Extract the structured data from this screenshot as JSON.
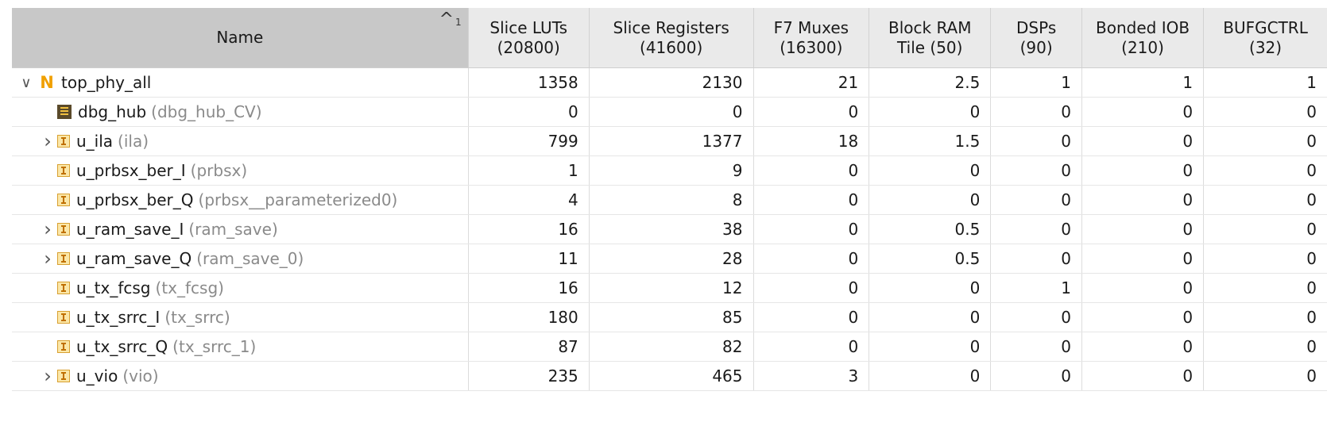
{
  "columns": {
    "name": "Name",
    "sort_number": "1",
    "slice_luts": "Slice LUTs\n(20800)",
    "slice_registers": "Slice Registers\n(41600)",
    "f7_muxes": "F7 Muxes\n(16300)",
    "block_ram": "Block RAM\nTile (50)",
    "dsps": "DSPs\n(90)",
    "bonded_iob": "Bonded IOB\n(210)",
    "bufgctrl": "BUFGCTRL\n(32)"
  },
  "rows": [
    {
      "name": "top_phy_all",
      "module": "",
      "icon": "top-module-n-icon",
      "expander": "expanded",
      "level": 0,
      "values": [
        "1358",
        "2130",
        "21",
        "2.5",
        "1",
        "1",
        "1"
      ]
    },
    {
      "name": "dbg_hub",
      "module": "(dbg_hub_CV)",
      "icon": "debug-hub-icon",
      "expander": "none",
      "level": 1,
      "values": [
        "0",
        "0",
        "0",
        "0",
        "0",
        "0",
        "0"
      ]
    },
    {
      "name": "u_ila",
      "module": "(ila)",
      "icon": "instance-icon",
      "expander": "collapsed",
      "level": 1,
      "values": [
        "799",
        "1377",
        "18",
        "1.5",
        "0",
        "0",
        "0"
      ]
    },
    {
      "name": "u_prbsx_ber_I",
      "module": "(prbsx)",
      "icon": "instance-icon",
      "expander": "none",
      "level": 1,
      "values": [
        "1",
        "9",
        "0",
        "0",
        "0",
        "0",
        "0"
      ]
    },
    {
      "name": "u_prbsx_ber_Q",
      "module": "(prbsx__parameterized0)",
      "icon": "instance-icon",
      "expander": "none",
      "level": 1,
      "values": [
        "4",
        "8",
        "0",
        "0",
        "0",
        "0",
        "0"
      ]
    },
    {
      "name": "u_ram_save_I",
      "module": "(ram_save)",
      "icon": "instance-icon",
      "expander": "collapsed",
      "level": 1,
      "values": [
        "16",
        "38",
        "0",
        "0.5",
        "0",
        "0",
        "0"
      ]
    },
    {
      "name": "u_ram_save_Q",
      "module": "(ram_save_0)",
      "icon": "instance-icon",
      "expander": "collapsed",
      "level": 1,
      "values": [
        "11",
        "28",
        "0",
        "0.5",
        "0",
        "0",
        "0"
      ]
    },
    {
      "name": "u_tx_fcsg",
      "module": "(tx_fcsg)",
      "icon": "instance-icon",
      "expander": "none",
      "level": 1,
      "values": [
        "16",
        "12",
        "0",
        "0",
        "1",
        "0",
        "0"
      ]
    },
    {
      "name": "u_tx_srrc_I",
      "module": "(tx_srrc)",
      "icon": "instance-icon",
      "expander": "none",
      "level": 1,
      "values": [
        "180",
        "85",
        "0",
        "0",
        "0",
        "0",
        "0"
      ]
    },
    {
      "name": "u_tx_srrc_Q",
      "module": "(tx_srrc_1)",
      "icon": "instance-icon",
      "expander": "none",
      "level": 1,
      "values": [
        "87",
        "82",
        "0",
        "0",
        "0",
        "0",
        "0"
      ]
    },
    {
      "name": "u_vio",
      "module": "(vio)",
      "icon": "instance-icon",
      "expander": "collapsed",
      "level": 1,
      "values": [
        "235",
        "465",
        "3",
        "0",
        "0",
        "0",
        "0"
      ]
    }
  ]
}
